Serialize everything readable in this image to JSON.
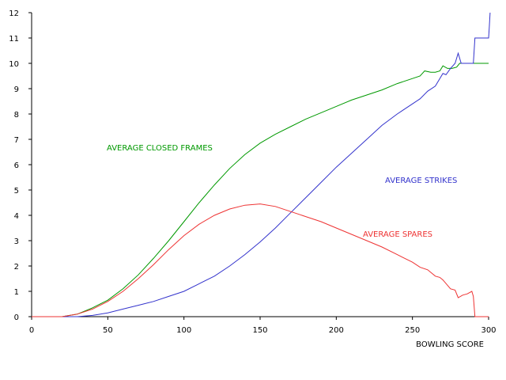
{
  "chart_data": {
    "type": "line",
    "title": "",
    "xlabel": "BOWLING SCORE",
    "ylabel": "",
    "xlim": [
      0,
      300
    ],
    "ylim": [
      0,
      12
    ],
    "xticks": [
      0,
      50,
      100,
      150,
      200,
      250,
      300
    ],
    "yticks": [
      0,
      1,
      2,
      3,
      4,
      5,
      6,
      7,
      8,
      9,
      10,
      11,
      12
    ],
    "grid": false,
    "legend": "inline labels",
    "series": [
      {
        "name": "AVERAGE CLOSED FRAMES",
        "color": "#009900",
        "x": [
          0,
          20,
          30,
          40,
          50,
          60,
          70,
          80,
          90,
          100,
          110,
          120,
          130,
          140,
          150,
          160,
          170,
          180,
          190,
          200,
          210,
          220,
          230,
          240,
          250,
          255,
          258,
          262,
          265,
          268,
          270,
          273,
          276,
          279,
          281,
          283,
          290,
          300
        ],
        "y": [
          0,
          0,
          0.1,
          0.35,
          0.65,
          1.1,
          1.65,
          2.3,
          3.0,
          3.75,
          4.5,
          5.2,
          5.85,
          6.4,
          6.85,
          7.2,
          7.5,
          7.8,
          8.05,
          8.3,
          8.55,
          8.75,
          8.95,
          9.2,
          9.4,
          9.5,
          9.7,
          9.65,
          9.65,
          9.7,
          9.9,
          9.8,
          9.8,
          9.85,
          10.0,
          10.0,
          10.0,
          10.0
        ]
      },
      {
        "name": "AVERAGE STRIKES",
        "color": "#3333cc",
        "x": [
          0,
          30,
          40,
          50,
          60,
          70,
          80,
          90,
          100,
          110,
          120,
          130,
          140,
          150,
          160,
          170,
          180,
          190,
          200,
          210,
          220,
          230,
          240,
          250,
          255,
          260,
          265,
          270,
          272,
          275,
          278,
          280,
          282,
          290,
          291,
          296,
          300,
          300.5,
          301
        ],
        "y": [
          0,
          0,
          0.05,
          0.15,
          0.3,
          0.45,
          0.6,
          0.8,
          1.0,
          1.3,
          1.6,
          2.0,
          2.45,
          2.95,
          3.5,
          4.1,
          4.7,
          5.3,
          5.9,
          6.45,
          7.0,
          7.55,
          8.0,
          8.4,
          8.6,
          8.9,
          9.1,
          9.6,
          9.55,
          9.8,
          10.0,
          10.4,
          10.0,
          10.0,
          11.0,
          11.0,
          11.0,
          11.5,
          12.0
        ]
      },
      {
        "name": "AVERAGE SPARES",
        "color": "#ee3333",
        "x": [
          0,
          20,
          30,
          40,
          50,
          60,
          70,
          80,
          90,
          100,
          110,
          120,
          130,
          140,
          150,
          160,
          170,
          180,
          190,
          200,
          210,
          220,
          230,
          240,
          250,
          255,
          260,
          265,
          268,
          270,
          275,
          278,
          280,
          283,
          286,
          289,
          290,
          291,
          300
        ],
        "y": [
          0,
          0,
          0.1,
          0.3,
          0.6,
          1.0,
          1.5,
          2.05,
          2.65,
          3.2,
          3.65,
          4.0,
          4.25,
          4.4,
          4.45,
          4.35,
          4.15,
          3.95,
          3.75,
          3.5,
          3.25,
          3.0,
          2.75,
          2.45,
          2.15,
          1.95,
          1.85,
          1.6,
          1.55,
          1.45,
          1.1,
          1.05,
          0.75,
          0.85,
          0.9,
          1.0,
          0.8,
          0.0,
          0.0
        ]
      }
    ]
  }
}
